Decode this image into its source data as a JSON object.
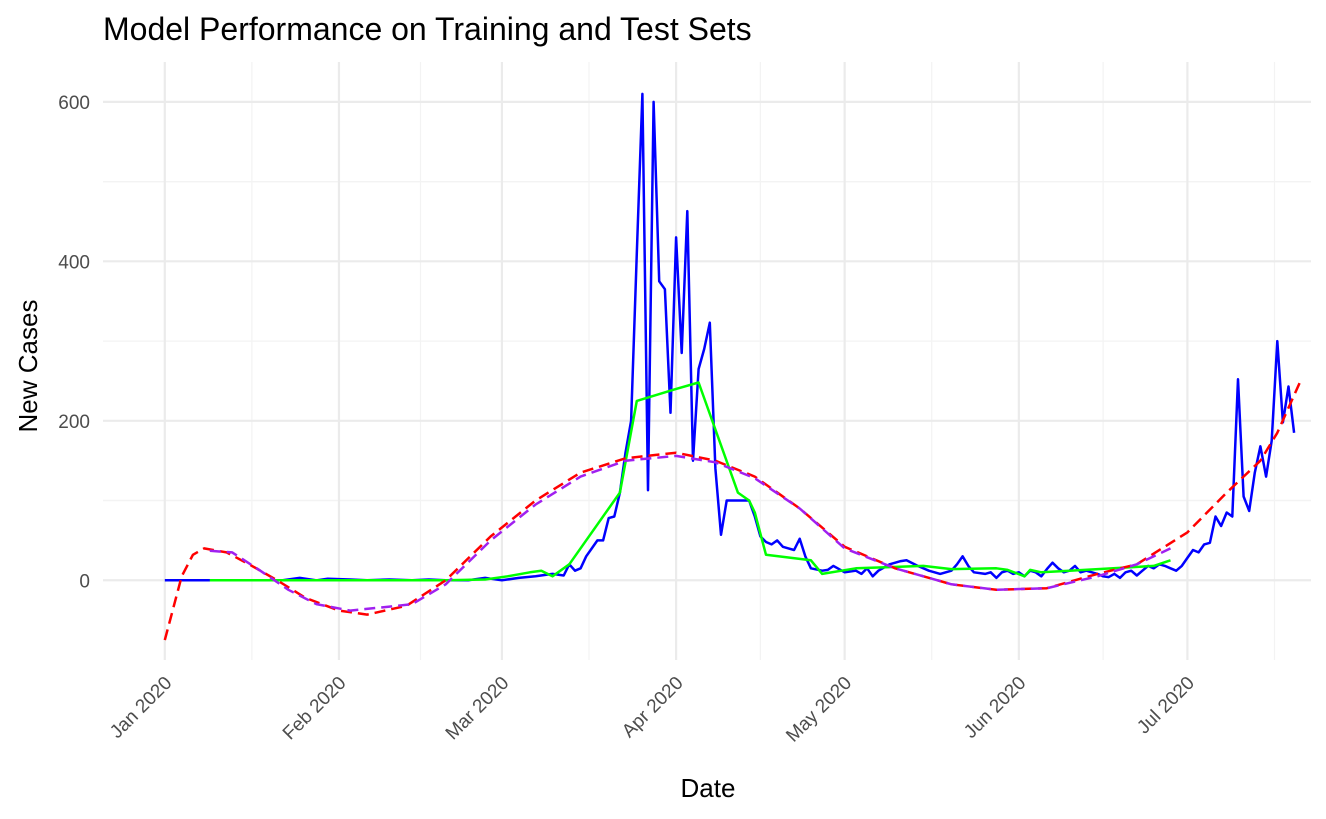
{
  "chart_data": {
    "type": "line",
    "title": "Model Performance on Training and Test Sets",
    "xlabel": "Date",
    "ylabel": "New Cases",
    "x_axis": {
      "type": "date",
      "range": [
        "2019-12-21",
        "2020-07-23"
      ],
      "ticks": [
        "2020-01-01",
        "2020-02-01",
        "2020-03-01",
        "2020-04-01",
        "2020-05-01",
        "2020-06-01",
        "2020-07-01"
      ],
      "tick_labels": [
        "Jan 2020",
        "Feb 2020",
        "Mar 2020",
        "Apr 2020",
        "May 2020",
        "Jun 2020",
        "Jul 2020"
      ]
    },
    "y_axis": {
      "range": [
        -100,
        650
      ],
      "ticks": [
        0,
        200,
        400,
        600
      ],
      "tick_labels": [
        "0",
        "200",
        "400",
        "600"
      ]
    },
    "grid": true,
    "legend": "none",
    "series": [
      {
        "color": "#0000ff",
        "dash": "solid",
        "points": [
          [
            "2020-01-01",
            0
          ],
          [
            "2020-01-08",
            0
          ],
          [
            "2020-01-15",
            0
          ],
          [
            "2020-01-22",
            0
          ],
          [
            "2020-01-25",
            3
          ],
          [
            "2020-01-28",
            0
          ],
          [
            "2020-01-30",
            2
          ],
          [
            "2020-02-03",
            1
          ],
          [
            "2020-02-06",
            0
          ],
          [
            "2020-02-10",
            1
          ],
          [
            "2020-02-14",
            0
          ],
          [
            "2020-02-17",
            1
          ],
          [
            "2020-02-20",
            0
          ],
          [
            "2020-02-24",
            0
          ],
          [
            "2020-02-27",
            3
          ],
          [
            "2020-03-01",
            0
          ],
          [
            "2020-03-04",
            3
          ],
          [
            "2020-03-07",
            5
          ],
          [
            "2020-03-10",
            8
          ],
          [
            "2020-03-12",
            6
          ],
          [
            "2020-03-13",
            20
          ],
          [
            "2020-03-14",
            12
          ],
          [
            "2020-03-15",
            15
          ],
          [
            "2020-03-16",
            30
          ],
          [
            "2020-03-17",
            40
          ],
          [
            "2020-03-18",
            50
          ],
          [
            "2020-03-19",
            50
          ],
          [
            "2020-03-20",
            78
          ],
          [
            "2020-03-21",
            80
          ],
          [
            "2020-03-22",
            110
          ],
          [
            "2020-03-23",
            160
          ],
          [
            "2020-03-24",
            200
          ],
          [
            "2020-03-25",
            410
          ],
          [
            "2020-03-26",
            610
          ],
          [
            "2020-03-27",
            113
          ],
          [
            "2020-03-28",
            600
          ],
          [
            "2020-03-29",
            375
          ],
          [
            "2020-03-30",
            365
          ],
          [
            "2020-03-31",
            210
          ],
          [
            "2020-04-01",
            430
          ],
          [
            "2020-04-02",
            285
          ],
          [
            "2020-04-03",
            463
          ],
          [
            "2020-04-04",
            150
          ],
          [
            "2020-04-05",
            265
          ],
          [
            "2020-04-06",
            290
          ],
          [
            "2020-04-07",
            323
          ],
          [
            "2020-04-08",
            140
          ],
          [
            "2020-04-09",
            57
          ],
          [
            "2020-04-10",
            100
          ],
          [
            "2020-04-12",
            100
          ],
          [
            "2020-04-13",
            100
          ],
          [
            "2020-04-14",
            100
          ],
          [
            "2020-04-15",
            80
          ],
          [
            "2020-04-16",
            55
          ],
          [
            "2020-04-17",
            48
          ],
          [
            "2020-04-18",
            45
          ],
          [
            "2020-04-19",
            50
          ],
          [
            "2020-04-20",
            42
          ],
          [
            "2020-04-21",
            40
          ],
          [
            "2020-04-22",
            38
          ],
          [
            "2020-04-23",
            52
          ],
          [
            "2020-04-24",
            30
          ],
          [
            "2020-04-25",
            15
          ],
          [
            "2020-04-27",
            12
          ],
          [
            "2020-04-28",
            13
          ],
          [
            "2020-04-29",
            18
          ],
          [
            "2020-04-30",
            14
          ],
          [
            "2020-05-01",
            10
          ],
          [
            "2020-05-03",
            12
          ],
          [
            "2020-05-04",
            8
          ],
          [
            "2020-05-05",
            15
          ],
          [
            "2020-05-06",
            5
          ],
          [
            "2020-05-07",
            12
          ],
          [
            "2020-05-08",
            16
          ],
          [
            "2020-05-09",
            20
          ],
          [
            "2020-05-10",
            22
          ],
          [
            "2020-05-11",
            24
          ],
          [
            "2020-05-12",
            25
          ],
          [
            "2020-05-14",
            18
          ],
          [
            "2020-05-16",
            12
          ],
          [
            "2020-05-18",
            8
          ],
          [
            "2020-05-19",
            10
          ],
          [
            "2020-05-20",
            12
          ],
          [
            "2020-05-21",
            20
          ],
          [
            "2020-05-22",
            30
          ],
          [
            "2020-05-23",
            18
          ],
          [
            "2020-05-24",
            10
          ],
          [
            "2020-05-26",
            8
          ],
          [
            "2020-05-27",
            10
          ],
          [
            "2020-05-28",
            3
          ],
          [
            "2020-05-29",
            10
          ],
          [
            "2020-05-30",
            12
          ],
          [
            "2020-05-31",
            8
          ],
          [
            "2020-06-01",
            10
          ],
          [
            "2020-06-02",
            5
          ],
          [
            "2020-06-03",
            12
          ],
          [
            "2020-06-04",
            10
          ],
          [
            "2020-06-05",
            5
          ],
          [
            "2020-06-06",
            14
          ],
          [
            "2020-06-07",
            22
          ],
          [
            "2020-06-08",
            15
          ],
          [
            "2020-06-09",
            10
          ],
          [
            "2020-06-10",
            12
          ],
          [
            "2020-06-11",
            18
          ],
          [
            "2020-06-12",
            10
          ],
          [
            "2020-06-13",
            12
          ],
          [
            "2020-06-14",
            10
          ],
          [
            "2020-06-15",
            8
          ],
          [
            "2020-06-16",
            5
          ],
          [
            "2020-06-17",
            4
          ],
          [
            "2020-06-18",
            8
          ],
          [
            "2020-06-19",
            3
          ],
          [
            "2020-06-20",
            10
          ],
          [
            "2020-06-21",
            12
          ],
          [
            "2020-06-22",
            6
          ],
          [
            "2020-06-23",
            12
          ],
          [
            "2020-06-24",
            18
          ],
          [
            "2020-06-25",
            15
          ],
          [
            "2020-06-26",
            20
          ],
          [
            "2020-06-27",
            18
          ],
          [
            "2020-06-28",
            15
          ],
          [
            "2020-06-29",
            12
          ],
          [
            "2020-06-30",
            18
          ],
          [
            "2020-07-01",
            28
          ],
          [
            "2020-07-02",
            38
          ],
          [
            "2020-07-03",
            35
          ],
          [
            "2020-07-04",
            45
          ],
          [
            "2020-07-05",
            47
          ],
          [
            "2020-07-06",
            80
          ],
          [
            "2020-07-07",
            68
          ],
          [
            "2020-07-08",
            85
          ],
          [
            "2020-07-09",
            80
          ],
          [
            "2020-07-10",
            252
          ],
          [
            "2020-07-11",
            105
          ],
          [
            "2020-07-12",
            87
          ],
          [
            "2020-07-13",
            135
          ],
          [
            "2020-07-14",
            168
          ],
          [
            "2020-07-15",
            130
          ],
          [
            "2020-07-16",
            175
          ],
          [
            "2020-07-17",
            300
          ],
          [
            "2020-07-18",
            198
          ],
          [
            "2020-07-19",
            243
          ],
          [
            "2020-07-20",
            185
          ]
        ]
      },
      {
        "color": "#00ff00",
        "dash": "solid",
        "points": [
          [
            "2020-01-09",
            0
          ],
          [
            "2020-02-20",
            0
          ],
          [
            "2020-02-27",
            1
          ],
          [
            "2020-03-02",
            5
          ],
          [
            "2020-03-06",
            10
          ],
          [
            "2020-03-08",
            12
          ],
          [
            "2020-03-10",
            5
          ],
          [
            "2020-03-13",
            20
          ],
          [
            "2020-03-22",
            110
          ],
          [
            "2020-03-25",
            225
          ],
          [
            "2020-04-01",
            240
          ],
          [
            "2020-04-05",
            248
          ],
          [
            "2020-04-12",
            110
          ],
          [
            "2020-04-14",
            100
          ],
          [
            "2020-04-15",
            85
          ],
          [
            "2020-04-17",
            32
          ],
          [
            "2020-04-25",
            25
          ],
          [
            "2020-04-27",
            8
          ],
          [
            "2020-05-03",
            15
          ],
          [
            "2020-05-15",
            18
          ],
          [
            "2020-05-20",
            14
          ],
          [
            "2020-05-28",
            15
          ],
          [
            "2020-05-30",
            13
          ],
          [
            "2020-06-02",
            5
          ],
          [
            "2020-06-03",
            13
          ],
          [
            "2020-06-05",
            10
          ],
          [
            "2020-06-10",
            12
          ],
          [
            "2020-06-25",
            18
          ],
          [
            "2020-06-28",
            25
          ]
        ]
      },
      {
        "color": "#ff0000",
        "dash": "dashed",
        "points": [
          [
            "2020-01-01",
            -75
          ],
          [
            "2020-01-04",
            5
          ],
          [
            "2020-01-06",
            32
          ],
          [
            "2020-01-08",
            40
          ],
          [
            "2020-01-12",
            35
          ],
          [
            "2020-01-16",
            20
          ],
          [
            "2020-01-21",
            0
          ],
          [
            "2020-01-26",
            -22
          ],
          [
            "2020-02-01",
            -38
          ],
          [
            "2020-02-06",
            -43
          ],
          [
            "2020-02-13",
            -32
          ],
          [
            "2020-02-20",
            0
          ],
          [
            "2020-02-28",
            55
          ],
          [
            "2020-03-07",
            100
          ],
          [
            "2020-03-15",
            135
          ],
          [
            "2020-03-23",
            153
          ],
          [
            "2020-04-01",
            160
          ],
          [
            "2020-04-08",
            150
          ],
          [
            "2020-04-15",
            130
          ],
          [
            "2020-04-23",
            90
          ],
          [
            "2020-05-01",
            42
          ],
          [
            "2020-05-10",
            15
          ],
          [
            "2020-05-20",
            -5
          ],
          [
            "2020-05-28",
            -12
          ],
          [
            "2020-06-06",
            -10
          ],
          [
            "2020-06-15",
            8
          ],
          [
            "2020-06-22",
            20
          ],
          [
            "2020-07-01",
            60
          ],
          [
            "2020-07-08",
            110
          ],
          [
            "2020-07-14",
            150
          ],
          [
            "2020-07-17",
            185
          ],
          [
            "2020-07-21",
            248
          ]
        ]
      },
      {
        "color": "#a020f0",
        "dash": "dashed",
        "points": [
          [
            "2020-01-09",
            37
          ],
          [
            "2020-01-13",
            35
          ],
          [
            "2020-01-18",
            12
          ],
          [
            "2020-01-23",
            -12
          ],
          [
            "2020-01-28",
            -30
          ],
          [
            "2020-02-03",
            -38
          ],
          [
            "2020-02-10",
            -33
          ],
          [
            "2020-02-14",
            -30
          ],
          [
            "2020-02-20",
            -5
          ],
          [
            "2020-02-28",
            50
          ],
          [
            "2020-03-07",
            95
          ],
          [
            "2020-03-15",
            130
          ],
          [
            "2020-03-23",
            150
          ],
          [
            "2020-04-01",
            156
          ],
          [
            "2020-04-08",
            148
          ],
          [
            "2020-04-15",
            128
          ],
          [
            "2020-04-23",
            90
          ],
          [
            "2020-05-01",
            40
          ],
          [
            "2020-05-10",
            15
          ],
          [
            "2020-05-20",
            -5
          ],
          [
            "2020-05-28",
            -12
          ],
          [
            "2020-06-06",
            -10
          ],
          [
            "2020-06-15",
            5
          ],
          [
            "2020-06-22",
            20
          ],
          [
            "2020-06-28",
            40
          ]
        ]
      }
    ]
  }
}
